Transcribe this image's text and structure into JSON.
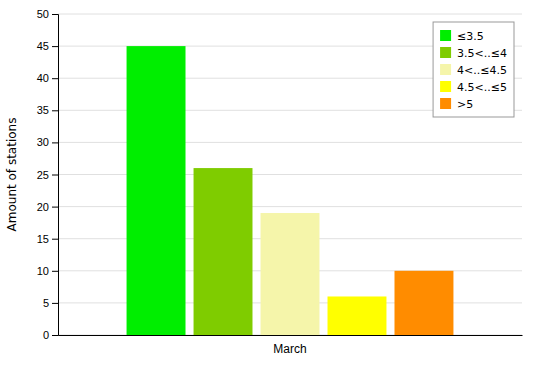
{
  "chart_data": {
    "type": "bar",
    "categories": [
      "March"
    ],
    "series": [
      {
        "name": "≤3.5",
        "color": "#00ee00",
        "values": [
          45
        ]
      },
      {
        "name": "3.5<..≤4",
        "color": "#7fcc00",
        "values": [
          26
        ]
      },
      {
        "name": "4<..≤4.5",
        "color": "#f5f5aa",
        "values": [
          19
        ]
      },
      {
        "name": "4.5<..≤5",
        "color": "#ffff00",
        "values": [
          6
        ]
      },
      {
        "name": ">5",
        "color": "#ff8c00",
        "values": [
          10
        ]
      }
    ],
    "ylabel": "Amount of stations",
    "ylim": [
      0,
      50
    ],
    "yticks": [
      0,
      5,
      10,
      15,
      20,
      25,
      30,
      35,
      40,
      45,
      50
    ],
    "grid": true,
    "legend": "upper right"
  }
}
